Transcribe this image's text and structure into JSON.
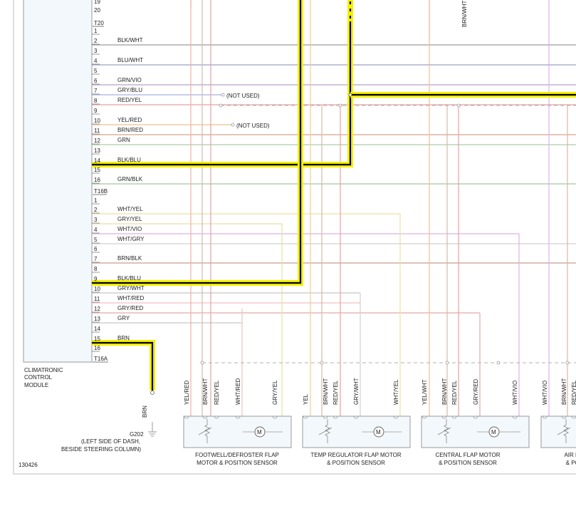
{
  "module": {
    "name_lines": [
      "CLIMATRONIC",
      "CONTROL",
      "MODULE"
    ]
  },
  "connectors": {
    "t20": {
      "id": "T20",
      "top_pins": [
        "19",
        "20"
      ],
      "pins": [
        {
          "pin": "1",
          "wire": ""
        },
        {
          "pin": "2",
          "wire": "BLK/WHT",
          "color": "#9a9a9a"
        },
        {
          "pin": "3",
          "wire": ""
        },
        {
          "pin": "4",
          "wire": "BLU/WHT",
          "color": "#9aa0c8"
        },
        {
          "pin": "5",
          "wire": ""
        },
        {
          "pin": "6",
          "wire": "GRN/VIO",
          "color": "#b8a0c8"
        },
        {
          "pin": "7",
          "wire": "GRY/BLU",
          "color": "#a8b0e0"
        },
        {
          "pin": "8",
          "wire": "RED/YEL",
          "color": "#e8a0a0"
        },
        {
          "pin": "9",
          "wire": ""
        },
        {
          "pin": "10",
          "wire": "YEL/RED",
          "color": "#f0c090"
        },
        {
          "pin": "11",
          "wire": "BRN/RED",
          "color": "#d8a090"
        },
        {
          "pin": "12",
          "wire": "GRN",
          "color": "#a8d0a8"
        },
        {
          "pin": "13",
          "wire": ""
        },
        {
          "pin": "14",
          "wire": "BLK/BLU",
          "color": "#000000"
        },
        {
          "pin": "15",
          "wire": ""
        },
        {
          "pin": "16",
          "wire": "GRN/BLK",
          "color": "#a0c8a0"
        }
      ]
    },
    "t16b": {
      "id": "T16B",
      "pins": [
        {
          "pin": "1",
          "wire": ""
        },
        {
          "pin": "2",
          "wire": "WHT/YEL",
          "color": "#f0e0a0"
        },
        {
          "pin": "3",
          "wire": "GRY/YEL",
          "color": "#e8e0a0"
        },
        {
          "pin": "4",
          "wire": "WHT/VIO",
          "color": "#e0b0e8"
        },
        {
          "pin": "5",
          "wire": "WHT/GRY",
          "color": "#d0d0d0"
        },
        {
          "pin": "6",
          "wire": ""
        },
        {
          "pin": "7",
          "wire": "BRN/BLK",
          "color": "#c0a090"
        },
        {
          "pin": "8",
          "wire": ""
        },
        {
          "pin": "9",
          "wire": "BLK/BLU",
          "color": "#000000"
        },
        {
          "pin": "10",
          "wire": "GRY/WHT",
          "color": "#c8c8c8"
        },
        {
          "pin": "11",
          "wire": "WHT/RED",
          "color": "#f0c0c0"
        },
        {
          "pin": "12",
          "wire": "GRY/RED",
          "color": "#e8a8a8"
        },
        {
          "pin": "13",
          "wire": "GRY",
          "color": "#c8c8c8"
        },
        {
          "pin": "14",
          "wire": ""
        },
        {
          "pin": "15",
          "wire": "BRN",
          "color": "#000000"
        },
        {
          "pin": "16",
          "wire": ""
        }
      ]
    },
    "t16a": {
      "id": "T16A"
    }
  },
  "not_used_labels": [
    "(NOT USED)",
    "(NOT USED)"
  ],
  "top_vertical_label": "BRN/WHT",
  "ground": {
    "wire_label": "BRN",
    "id": "G202",
    "location": "(LEFT SIDE OF DASH,",
    "location2": "BESIDE STEERING COLUMN)"
  },
  "components": [
    {
      "wires": [
        "YEL/RED",
        "BRN/WHT",
        "RED/YEL",
        "WHT/RED",
        "GRY/YEL"
      ],
      "title": "FOOTWELL/DEFROSTER FLAP",
      "subtitle": "MOTOR & POSITION SENSOR"
    },
    {
      "wires": [
        "YEL",
        "BRN/WHT",
        "RED/YEL",
        "GRY/WHT",
        "WHT/YEL"
      ],
      "title": "TEMP REGULATOR FLAP MOTOR",
      "subtitle": "& POSITION SENSOR"
    },
    {
      "wires": [
        "YEL/WHT",
        "BRN/WHT",
        "RED/YEL",
        "GRY/RED",
        "WHT/VIO"
      ],
      "title": "CENTRAL FLAP MOTOR",
      "subtitle": "& POSITION SENSOR"
    },
    {
      "wires": [
        "WHT/VIO",
        "BRN/WHT",
        "RED/YEL"
      ],
      "title": "AIR FLO",
      "subtitle": "& POSI"
    }
  ],
  "motor_symbol": "M",
  "figure_number": "130426"
}
